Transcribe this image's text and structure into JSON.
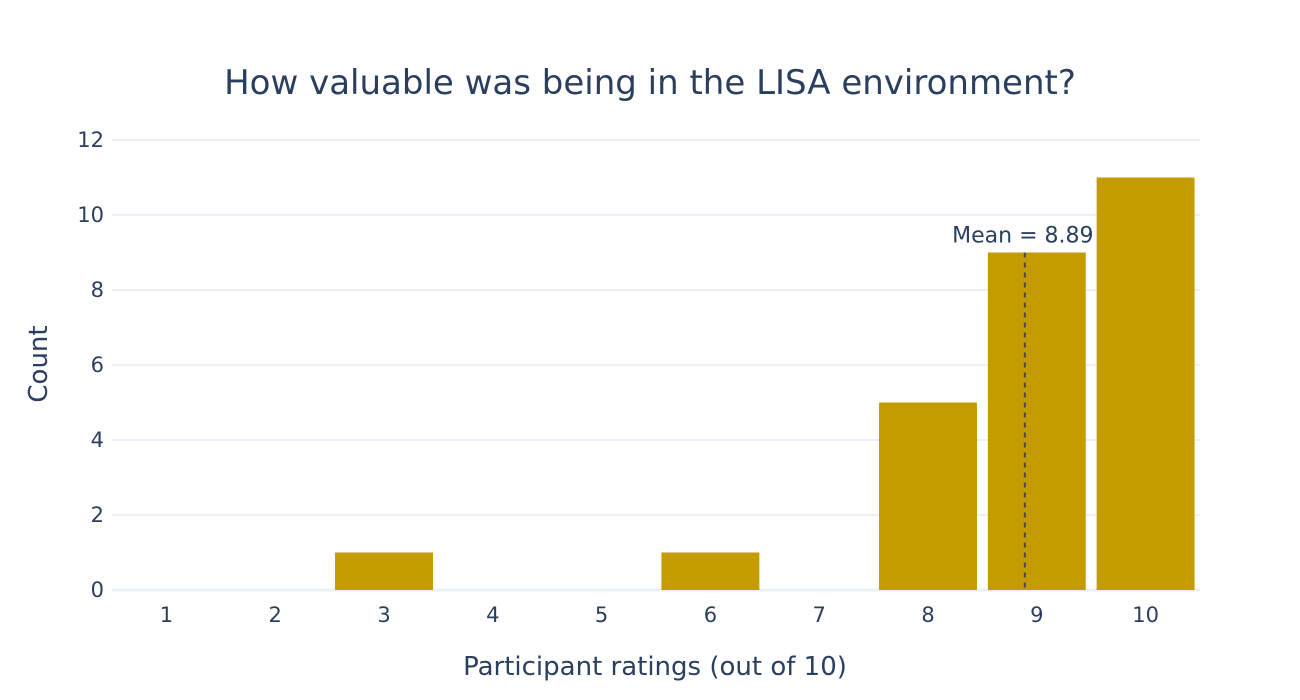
{
  "chart_data": {
    "type": "bar",
    "title": "How valuable was being in the LISA environment?",
    "xlabel": "Participant ratings (out of 10)",
    "ylabel": "Count",
    "categories": [
      "1",
      "2",
      "3",
      "4",
      "5",
      "6",
      "7",
      "8",
      "9",
      "10"
    ],
    "values": [
      0,
      0,
      1,
      0,
      0,
      1,
      0,
      5,
      9,
      11
    ],
    "ylim": [
      0,
      12
    ],
    "yticks": [
      0,
      2,
      4,
      6,
      8,
      10,
      12
    ],
    "grid": true,
    "bar_color": "#c49c00",
    "mean": {
      "value": 8.89,
      "label": "Mean = 8.89",
      "line_style": "dashed",
      "line_color": "#4a4a4a"
    }
  }
}
